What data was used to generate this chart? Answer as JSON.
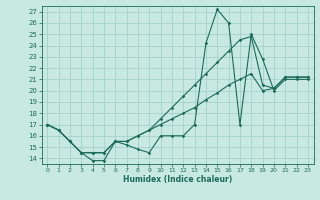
{
  "xlabel": "Humidex (Indice chaleur)",
  "xlim": [
    -0.5,
    23.5
  ],
  "ylim": [
    13.5,
    27.5
  ],
  "xticks": [
    0,
    1,
    2,
    3,
    4,
    5,
    6,
    7,
    8,
    9,
    10,
    11,
    12,
    13,
    14,
    15,
    16,
    17,
    18,
    19,
    20,
    21,
    22,
    23
  ],
  "yticks": [
    14,
    15,
    16,
    17,
    18,
    19,
    20,
    21,
    22,
    23,
    24,
    25,
    26,
    27
  ],
  "bg_color": "#c8e8e2",
  "grid_color": "#9ecec6",
  "line_color": "#1a6b58",
  "line1_x": [
    0,
    1,
    2,
    3,
    4,
    5,
    6,
    7,
    8,
    9,
    10,
    11,
    12,
    13,
    14,
    15,
    16,
    17,
    18,
    19,
    20,
    21,
    22,
    23
  ],
  "line1_y": [
    17,
    16.5,
    15.5,
    14.5,
    13.8,
    13.8,
    15.5,
    15.2,
    14.8,
    14.5,
    16.0,
    16.0,
    16.0,
    17.0,
    24.2,
    27.2,
    26.0,
    17.0,
    25.0,
    22.8,
    20.0,
    21.0,
    21.0,
    21.0
  ],
  "line2_x": [
    0,
    1,
    2,
    3,
    4,
    5,
    6,
    7,
    8,
    9,
    10,
    11,
    12,
    13,
    14,
    15,
    16,
    17,
    18,
    19,
    20,
    21,
    22,
    23
  ],
  "line2_y": [
    17,
    16.5,
    15.5,
    14.5,
    14.5,
    14.5,
    15.5,
    15.5,
    16.0,
    16.5,
    17.5,
    18.5,
    19.5,
    20.5,
    21.5,
    22.5,
    23.5,
    24.5,
    24.8,
    20.5,
    20.2,
    21.2,
    21.2,
    21.2
  ],
  "line3_x": [
    0,
    1,
    2,
    3,
    4,
    5,
    6,
    7,
    8,
    9,
    10,
    11,
    12,
    13,
    14,
    15,
    16,
    17,
    18,
    19,
    20,
    21,
    22,
    23
  ],
  "line3_y": [
    17,
    16.5,
    15.5,
    14.5,
    14.5,
    14.5,
    15.5,
    15.5,
    16.0,
    16.5,
    17.0,
    17.5,
    18.0,
    18.5,
    19.2,
    19.8,
    20.5,
    21.0,
    21.5,
    20.0,
    20.2,
    21.2,
    21.2,
    21.2
  ]
}
